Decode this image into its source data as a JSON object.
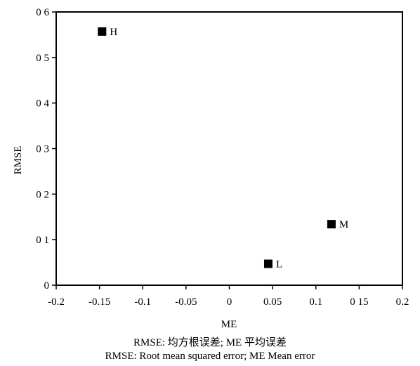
{
  "chart_data": {
    "type": "scatter",
    "xlabel": "ME",
    "ylabel": "RMSE",
    "xlim": [
      -0.2,
      0.2
    ],
    "ylim": [
      0,
      0.6
    ],
    "x_ticks": [
      "-0.2",
      "-0.15",
      "-0.1",
      "-0.05",
      "0",
      "0.05",
      "0.1",
      "0 15",
      "0.2"
    ],
    "y_ticks": [
      "0",
      "0 1",
      "0 2",
      "0 3",
      "0 4",
      "0 5",
      "0 6"
    ],
    "grid": false,
    "points": [
      {
        "label": "H",
        "x": -0.147,
        "y": 0.557
      },
      {
        "label": "M",
        "x": 0.118,
        "y": 0.134
      },
      {
        "label": "L",
        "x": 0.045,
        "y": 0.047
      }
    ]
  },
  "caption": {
    "line1": "RMSE: 均方根误差; ME 平均误差",
    "line2": "RMSE: Root  mean  squared  error; ME Mean  error"
  }
}
